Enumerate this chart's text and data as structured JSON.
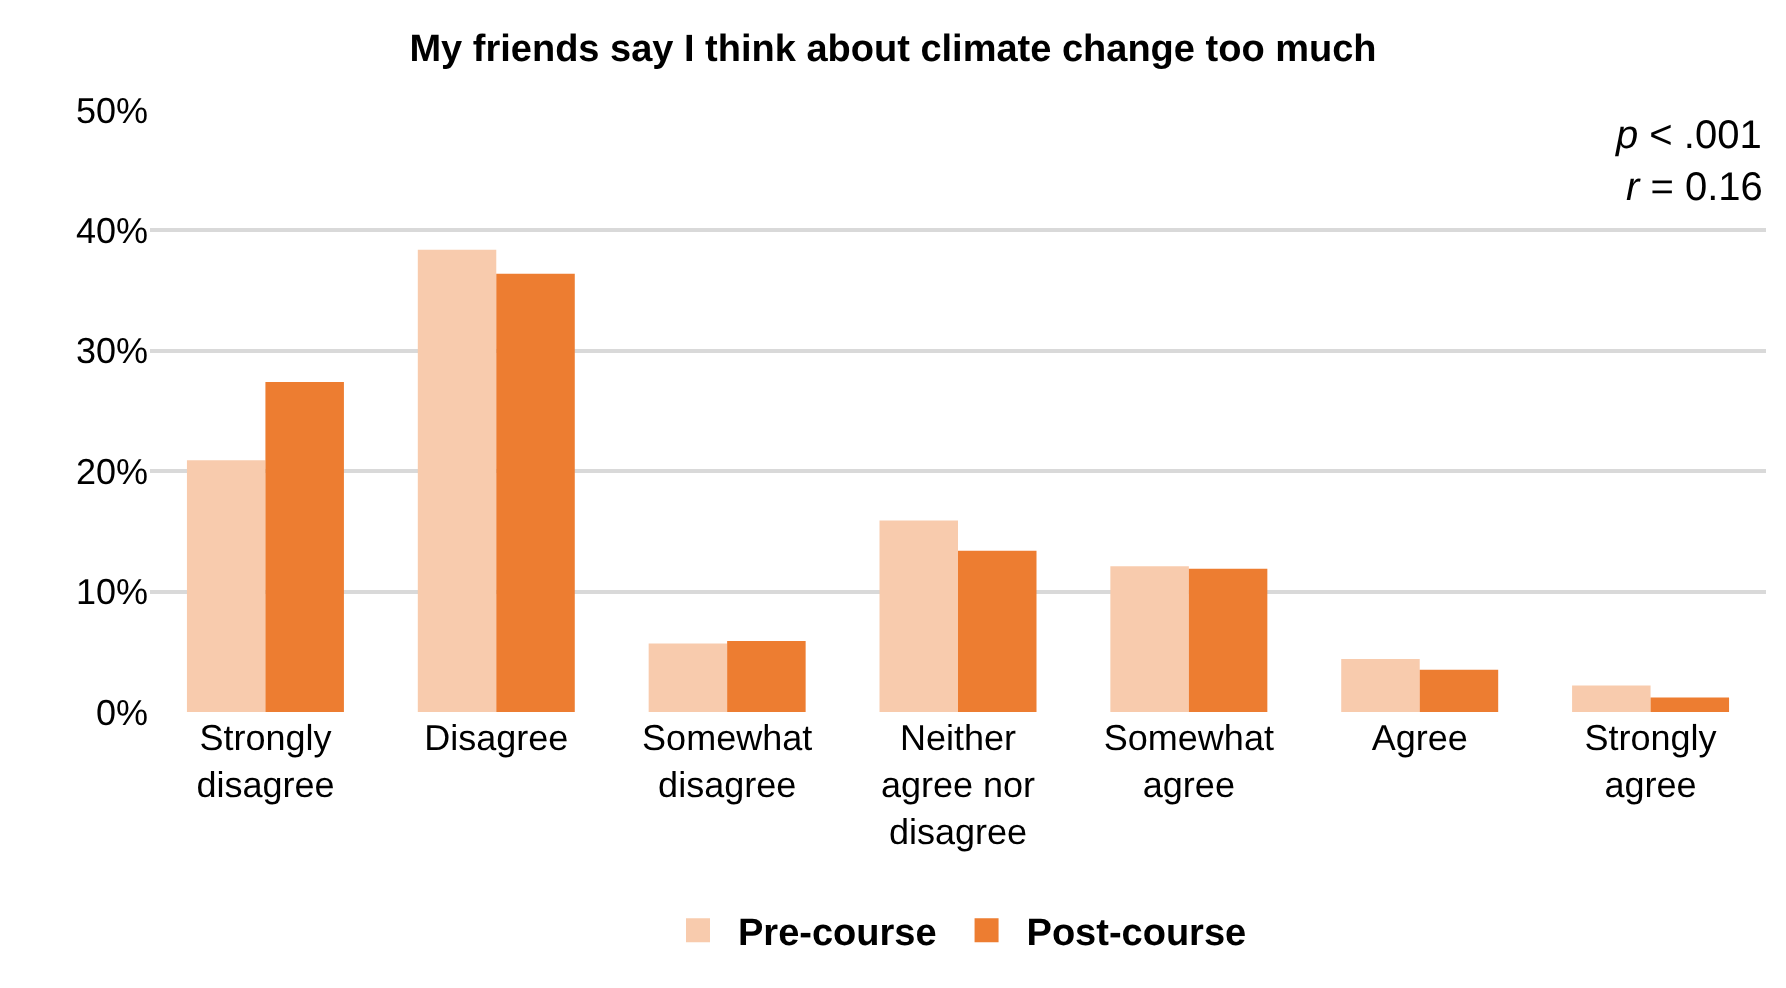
{
  "chart_data": {
    "type": "bar",
    "title": "My friends say I think about climate change too much",
    "categories": [
      "Strongly disagree",
      "Disagree",
      "Somewhat disagree",
      "Neither agree nor disagree",
      "Somewhat agree",
      "Agree",
      "Strongly agree"
    ],
    "series": [
      {
        "name": "Pre-course",
        "color": "#f8cbad",
        "values": [
          20.9,
          38.4,
          5.7,
          15.9,
          12.1,
          4.4,
          2.2
        ]
      },
      {
        "name": "Post-course",
        "color": "#ed7d31",
        "values": [
          27.4,
          36.4,
          5.9,
          13.4,
          11.9,
          3.5,
          1.2
        ]
      }
    ],
    "ylim": [
      0,
      50
    ],
    "yticks": [
      {
        "value": 0,
        "label": "0%"
      },
      {
        "value": 10,
        "label": "10%"
      },
      {
        "value": 20,
        "label": "20%"
      },
      {
        "value": 30,
        "label": "30%"
      },
      {
        "value": 40,
        "label": "40%"
      },
      {
        "value": 50,
        "label": "50%"
      }
    ],
    "grid": "y",
    "legend": "bottom",
    "annotations": [
      "p < .001",
      "r = 0.16"
    ]
  }
}
